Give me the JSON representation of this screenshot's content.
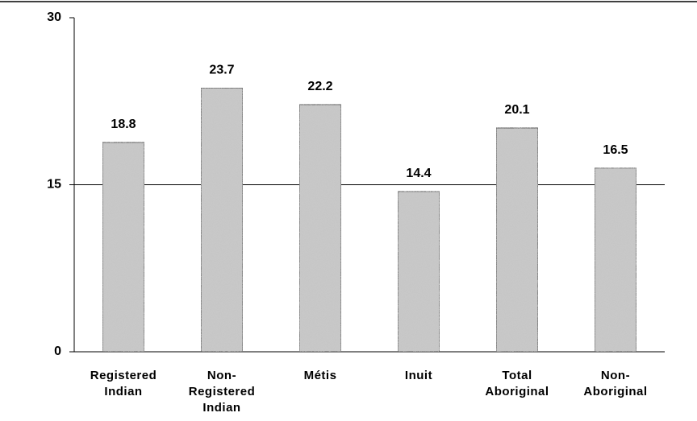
{
  "chart_data": {
    "type": "bar",
    "categories": [
      "Registered\nIndian",
      "Non-\nRegistered\nIndian",
      "Métis",
      "Inuit",
      "Total\nAboriginal",
      "Non-\nAboriginal"
    ],
    "values": [
      18.8,
      23.7,
      22.2,
      14.4,
      20.1,
      16.5
    ],
    "color": "#c8c8c8",
    "ylim": [
      0,
      30
    ],
    "yticks": [
      0,
      15,
      30
    ],
    "grid": true
  }
}
